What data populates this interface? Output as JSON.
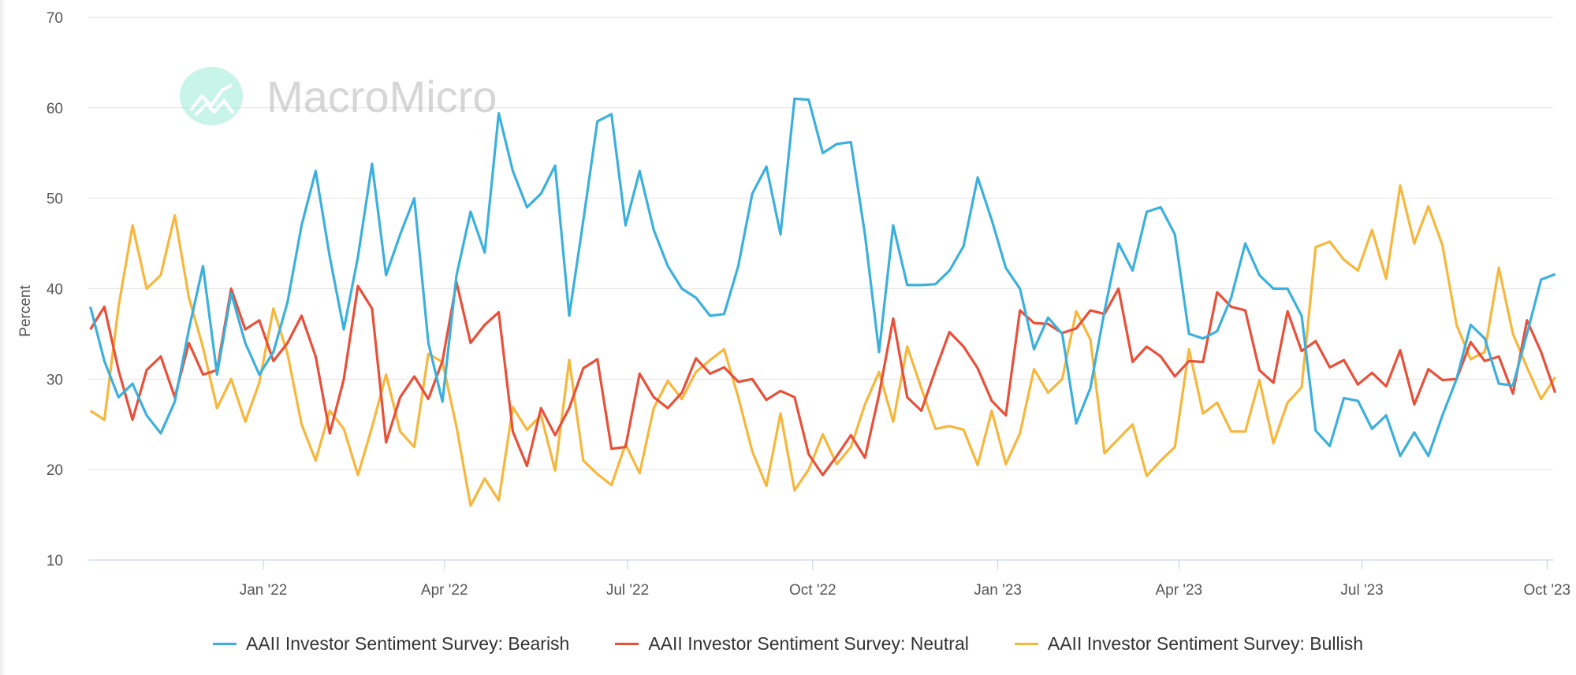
{
  "chart_data": {
    "type": "line",
    "title": "",
    "xlabel": "",
    "ylabel": "Percent",
    "ylim": [
      10,
      70
    ],
    "yticks": [
      10,
      20,
      30,
      40,
      50,
      60,
      70
    ],
    "xlim": [
      "2021-10-06",
      "2023-10-04"
    ],
    "xticks": [
      {
        "date": "2022-01-01",
        "label": "Jan '22"
      },
      {
        "date": "2022-04-01",
        "label": "Apr '22"
      },
      {
        "date": "2022-07-01",
        "label": "Jul '22"
      },
      {
        "date": "2022-10-01",
        "label": "Oct '22"
      },
      {
        "date": "2023-01-01",
        "label": "Jan '23"
      },
      {
        "date": "2023-04-01",
        "label": "Apr '23"
      },
      {
        "date": "2023-07-01",
        "label": "Jul '23"
      },
      {
        "date": "2023-10-01",
        "label": "Oct '23"
      }
    ],
    "grid": true,
    "legend_position": "bottom",
    "x": [
      "2021-10-07",
      "2021-10-14",
      "2021-10-21",
      "2021-10-28",
      "2021-11-04",
      "2021-11-11",
      "2021-11-18",
      "2021-11-25",
      "2021-12-02",
      "2021-12-09",
      "2021-12-16",
      "2021-12-23",
      "2021-12-30",
      "2022-01-06",
      "2022-01-13",
      "2022-01-20",
      "2022-01-27",
      "2022-02-03",
      "2022-02-10",
      "2022-02-17",
      "2022-02-24",
      "2022-03-03",
      "2022-03-10",
      "2022-03-17",
      "2022-03-24",
      "2022-03-31",
      "2022-04-07",
      "2022-04-14",
      "2022-04-21",
      "2022-04-28",
      "2022-05-05",
      "2022-05-12",
      "2022-05-19",
      "2022-05-26",
      "2022-06-02",
      "2022-06-09",
      "2022-06-16",
      "2022-06-23",
      "2022-06-30",
      "2022-07-07",
      "2022-07-14",
      "2022-07-21",
      "2022-07-28",
      "2022-08-04",
      "2022-08-11",
      "2022-08-18",
      "2022-08-25",
      "2022-09-01",
      "2022-09-08",
      "2022-09-15",
      "2022-09-22",
      "2022-09-29",
      "2022-10-06",
      "2022-10-13",
      "2022-10-20",
      "2022-10-27",
      "2022-11-03",
      "2022-11-10",
      "2022-11-17",
      "2022-11-24",
      "2022-12-01",
      "2022-12-08",
      "2022-12-15",
      "2022-12-22",
      "2022-12-29",
      "2023-01-05",
      "2023-01-12",
      "2023-01-19",
      "2023-01-26",
      "2023-02-02",
      "2023-02-09",
      "2023-02-16",
      "2023-02-23",
      "2023-03-02",
      "2023-03-09",
      "2023-03-16",
      "2023-03-23",
      "2023-03-30",
      "2023-04-06",
      "2023-04-13",
      "2023-04-20",
      "2023-04-27",
      "2023-05-04",
      "2023-05-11",
      "2023-05-18",
      "2023-05-25",
      "2023-06-01",
      "2023-06-08",
      "2023-06-15",
      "2023-06-22",
      "2023-06-29",
      "2023-07-06",
      "2023-07-13",
      "2023-07-20",
      "2023-07-27",
      "2023-08-03",
      "2023-08-10",
      "2023-08-17",
      "2023-08-24",
      "2023-08-31",
      "2023-09-07",
      "2023-09-14",
      "2023-09-21",
      "2023-09-28",
      "2023-10-05"
    ],
    "series": [
      {
        "name": "AAII Investor Sentiment Survey: Bearish",
        "color": "#3cb0dc",
        "values": [
          38,
          32,
          28,
          29.5,
          26,
          24,
          27.5,
          35.5,
          42.5,
          30.5,
          39.5,
          34,
          30.5,
          33,
          38.5,
          47,
          53,
          43.5,
          35.5,
          43.5,
          53.8,
          41.5,
          46,
          50,
          34,
          27.5,
          41.5,
          48.5,
          44,
          59.4,
          53,
          49,
          50.5,
          53.6,
          37,
          47.5,
          58.5,
          59.3,
          47,
          53,
          46.5,
          42.5,
          40,
          39,
          37,
          37.2,
          42.5,
          50.5,
          53.5,
          46,
          61,
          60.9,
          55,
          56,
          56.2,
          46,
          33,
          47,
          40.4,
          40.4,
          40.5,
          42,
          44.7,
          52.3,
          47.6,
          42.3,
          40,
          33.3,
          36.8,
          35,
          25.1,
          29,
          37.5,
          45,
          42,
          48.5,
          49,
          46,
          35,
          34.5,
          35.3,
          39,
          45,
          41.5,
          40,
          40,
          37,
          24.3,
          22.6,
          27.9,
          27.6,
          24.5,
          26,
          21.5,
          24.1,
          21.5,
          26,
          30,
          36,
          34.5,
          29.5,
          29.3,
          35,
          41,
          41.6
        ]
      },
      {
        "name": "AAII Investor Sentiment Survey: Neutral",
        "color": "#e8503a",
        "values": [
          35.5,
          38,
          31,
          25.5,
          31,
          32.5,
          28,
          34,
          30.5,
          31,
          40,
          35.5,
          36.5,
          32,
          34,
          37,
          32.5,
          24,
          30,
          40.3,
          37.8,
          23,
          28,
          30.3,
          27.8,
          32,
          40.7,
          34,
          36,
          37.4,
          24.2,
          20.4,
          26.8,
          23.8,
          26.8,
          31.2,
          32.2,
          22.3,
          22.5,
          30.6,
          28,
          26.8,
          28.5,
          32.3,
          30.6,
          31.3,
          29.7,
          30,
          27.7,
          28.7,
          28,
          21.7,
          19.4,
          21.5,
          23.8,
          21.3,
          28.3,
          36.7,
          28,
          26.5,
          31,
          35.2,
          33.6,
          31.2,
          27.6,
          26,
          37.6,
          36.2,
          36.1,
          35.1,
          35.6,
          37.6,
          37.2,
          40,
          31.9,
          33.6,
          32.5,
          30.3,
          32,
          31.9,
          39.6,
          38,
          37.6,
          31,
          29.6,
          37.5,
          33.1,
          34.2,
          31.3,
          32.1,
          29.4,
          30.7,
          29.2,
          33.2,
          27.2,
          31.1,
          29.9,
          30,
          34.1,
          32,
          32.5,
          28.4,
          36.5,
          33,
          28.5
        ]
      },
      {
        "name": "AAII Investor Sentiment Survey: Bullish",
        "color": "#f6b73c",
        "values": [
          26.5,
          25.5,
          38,
          47,
          40,
          41.5,
          48.1,
          39,
          33.5,
          26.8,
          30,
          25.3,
          29.6,
          37.8,
          32.8,
          25,
          21,
          26.5,
          24.5,
          19.4,
          24.7,
          30.5,
          24.2,
          22.5,
          32.8,
          31.9,
          24.7,
          16,
          19,
          16.6,
          26.9,
          24.4,
          26,
          19.9,
          32.1,
          21,
          19.5,
          18.3,
          22.8,
          19.6,
          26.8,
          29.8,
          27.8,
          30.8,
          32.1,
          33.3,
          28,
          22,
          18.2,
          26.2,
          17.7,
          20,
          23.9,
          20.6,
          22.5,
          27.2,
          30.8,
          25.3,
          33.6,
          29,
          24.5,
          24.8,
          24.4,
          20.5,
          26.5,
          20.6,
          24,
          31.1,
          28.5,
          30,
          37.5,
          34.4,
          21.8,
          23.4,
          25,
          19.3,
          21,
          22.5,
          33.3,
          26.2,
          27.4,
          24.2,
          24.2,
          29.9,
          22.9,
          27.4,
          29.1,
          44.6,
          45.2,
          43.2,
          42,
          46.5,
          41.1,
          51.4,
          45,
          49.1,
          44.8,
          36,
          32.2,
          33,
          42.3,
          35,
          31.3,
          27.8,
          30.2
        ]
      }
    ]
  },
  "watermark": {
    "text": "MacroMicro",
    "icon": "chart-line-logo-icon"
  }
}
